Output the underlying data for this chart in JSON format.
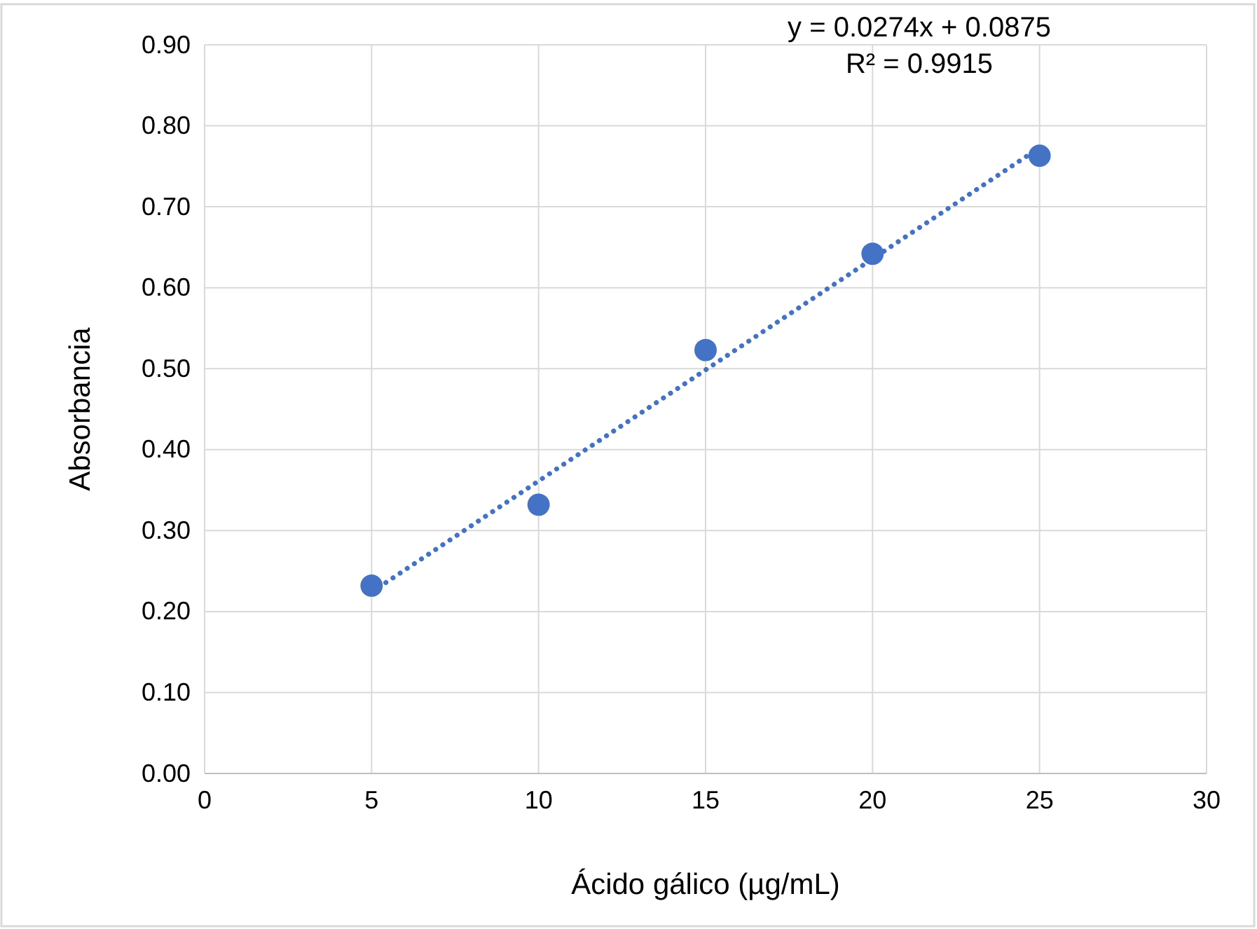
{
  "chart_data": {
    "type": "scatter",
    "xlabel": "Ácido gálico (µg/mL)",
    "ylabel": "Absorbancia",
    "annotations": [
      "y = 0.0274x + 0.0875",
      "R² = 0.9915"
    ],
    "series": [
      {
        "color": "#4472c4",
        "x": [
          5,
          10,
          15,
          20,
          25
        ],
        "values": [
          0.232,
          0.332,
          0.523,
          0.642,
          0.763
        ],
        "marker": "circle"
      },
      {
        "type": "line",
        "color": "#4472c4",
        "x": [
          5,
          25
        ],
        "values": [
          0.224,
          0.773
        ],
        "line_style": "dotted",
        "marker": "none"
      }
    ],
    "xlim": [
      0,
      30
    ],
    "xticks": [
      0,
      5,
      10,
      15,
      20,
      25,
      30
    ],
    "ylim": [
      0,
      0.9
    ],
    "yticks": [
      {
        "value": 0,
        "label": "0.00"
      },
      {
        "value": 0.1,
        "label": "0.10"
      },
      {
        "value": 0.2,
        "label": "0.20"
      },
      {
        "value": 0.3,
        "label": "0.30"
      },
      {
        "value": 0.4,
        "label": "0.40"
      },
      {
        "value": 0.5,
        "label": "0.50"
      },
      {
        "value": 0.6,
        "label": "0.60"
      },
      {
        "value": 0.7,
        "label": "0.70"
      },
      {
        "value": 0.8,
        "label": "0.80"
      },
      {
        "value": 0.9,
        "label": "0.90"
      }
    ],
    "grid": true
  }
}
